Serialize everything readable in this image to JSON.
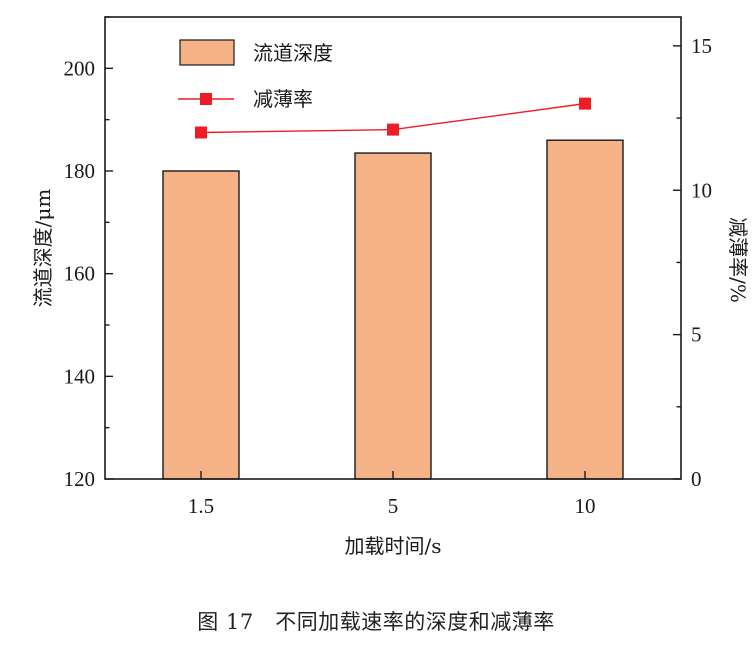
{
  "chart_data": {
    "type": "bar",
    "categories": [
      "1.5",
      "5",
      "10"
    ],
    "series": [
      {
        "name": "流道深度",
        "type": "bar",
        "axis": "left",
        "values": [
          180,
          183.5,
          186
        ],
        "color": "#f5b286"
      },
      {
        "name": "减薄率",
        "type": "line",
        "axis": "right",
        "values": [
          12,
          12.1,
          13
        ],
        "color": "#ee1c24"
      }
    ],
    "xlabel": "加载时间/s",
    "ylabel": "流道深度/μm",
    "y2label": "减薄率/%",
    "ylim": [
      120,
      210
    ],
    "y2lim": [
      0,
      16
    ],
    "yticks": [
      "120",
      "140",
      "160",
      "180",
      "200"
    ],
    "y2ticks": [
      "0",
      "5",
      "10",
      "15"
    ],
    "legend_position": "top-left",
    "grid": false
  },
  "caption": "图 17　不同加载速率的深度和减薄率"
}
